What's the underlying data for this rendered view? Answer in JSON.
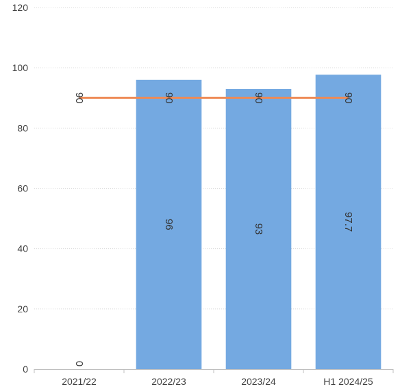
{
  "chart_data": {
    "type": "bar",
    "categories": [
      "2021/22",
      "2022/23",
      "2023/24",
      "H1 2024/25"
    ],
    "series": [
      {
        "type": "bar",
        "values": [
          0,
          96,
          93,
          97.7
        ],
        "data_labels": [
          "0",
          "96",
          "93",
          "97.7"
        ]
      },
      {
        "type": "line",
        "values": [
          90,
          90,
          90,
          90
        ],
        "data_labels": [
          "90",
          "90",
          "90",
          "90"
        ]
      }
    ],
    "ylim": [
      0,
      120
    ],
    "yticks": [
      0,
      20,
      40,
      60,
      80,
      100,
      120
    ],
    "grid": true,
    "title": "",
    "xlabel": "",
    "ylabel": "",
    "colors": {
      "bar": "#74a9e1",
      "line": "#ee8a55",
      "grid": "#d9d9d9",
      "axis": "#bfbfbf",
      "text": "#404040"
    }
  }
}
